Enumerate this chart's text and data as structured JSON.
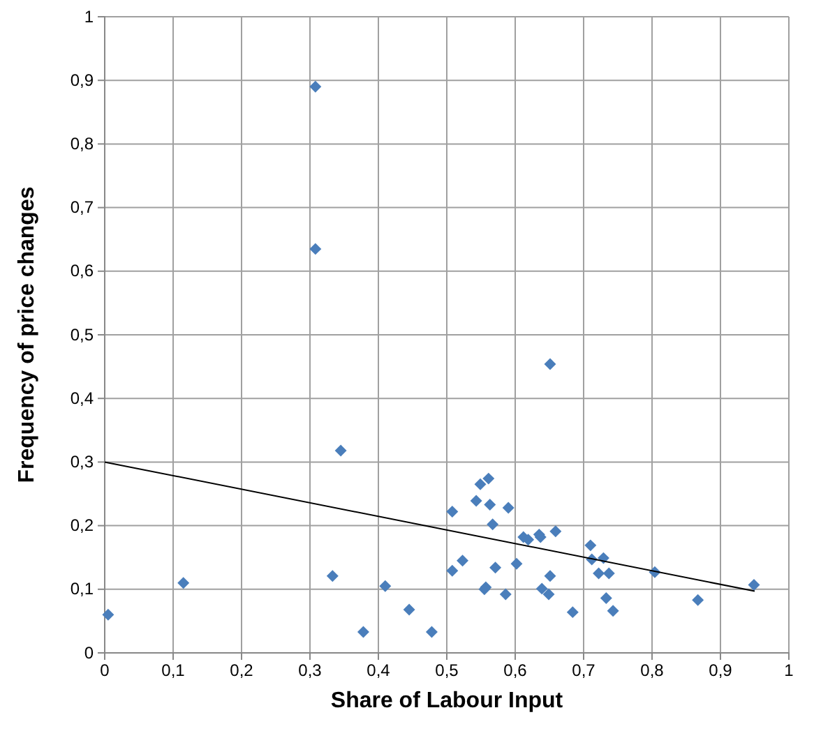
{
  "chart_data": {
    "type": "scatter",
    "xlabel": "Share of Labour Input",
    "ylabel": "Frequency of  price changes",
    "xlim": [
      0,
      1
    ],
    "ylim": [
      0,
      1
    ],
    "xticks": [
      0,
      {
        "value": 0.1,
        "label": "0,1"
      },
      {
        "value": 0.2,
        "label": "0,2"
      },
      {
        "value": 0.3,
        "label": "0,3"
      },
      {
        "value": 0.4,
        "label": "0,4"
      },
      {
        "value": 0.5,
        "label": "0,5"
      },
      {
        "value": 0.6,
        "label": "0,6"
      },
      {
        "value": 0.7,
        "label": "0,7"
      },
      {
        "value": 0.8,
        "label": "0,8"
      },
      {
        "value": 0.9,
        "label": "0,9"
      },
      1
    ],
    "yticks": [
      0,
      {
        "value": 0.1,
        "label": "0,1"
      },
      {
        "value": 0.2,
        "label": "0,2"
      },
      {
        "value": 0.3,
        "label": "0,3"
      },
      {
        "value": 0.4,
        "label": "0,4"
      },
      {
        "value": 0.5,
        "label": "0,5"
      },
      {
        "value": 0.6,
        "label": "0,6"
      },
      {
        "value": 0.7,
        "label": "0,7"
      },
      {
        "value": 0.8,
        "label": "0,8"
      },
      {
        "value": 0.9,
        "label": "0,9"
      },
      1
    ],
    "grid": true,
    "series": [
      {
        "marker": "diamond",
        "color": "#4a7ebb",
        "x": [
          0.005,
          0.115,
          0.308,
          0.308,
          0.345,
          0.333,
          0.378,
          0.41,
          0.445,
          0.478,
          0.508,
          0.508,
          0.523,
          0.543,
          0.549,
          0.561,
          0.563,
          0.567,
          0.557,
          0.555,
          0.571,
          0.586,
          0.59,
          0.602,
          0.612,
          0.619,
          0.635,
          0.637,
          0.659,
          0.651,
          0.639,
          0.649,
          0.651,
          0.684,
          0.71,
          0.712,
          0.729,
          0.722,
          0.737,
          0.733,
          0.743,
          0.804,
          0.867,
          0.949
        ],
        "values": [
          0.06,
          0.11,
          0.89,
          0.635,
          0.318,
          0.121,
          0.033,
          0.105,
          0.068,
          0.033,
          0.222,
          0.129,
          0.145,
          0.239,
          0.265,
          0.274,
          0.233,
          0.202,
          0.103,
          0.1,
          0.134,
          0.092,
          0.228,
          0.14,
          0.182,
          0.178,
          0.186,
          0.182,
          0.191,
          0.121,
          0.101,
          0.092,
          0.454,
          0.064,
          0.169,
          0.147,
          0.149,
          0.125,
          0.125,
          0.086,
          0.066,
          0.127,
          0.083,
          0.107
        ]
      },
      {
        "type": "line",
        "color": "#000000",
        "x": [
          0,
          0.95
        ],
        "values": [
          0.3,
          0.097
        ]
      }
    ]
  }
}
